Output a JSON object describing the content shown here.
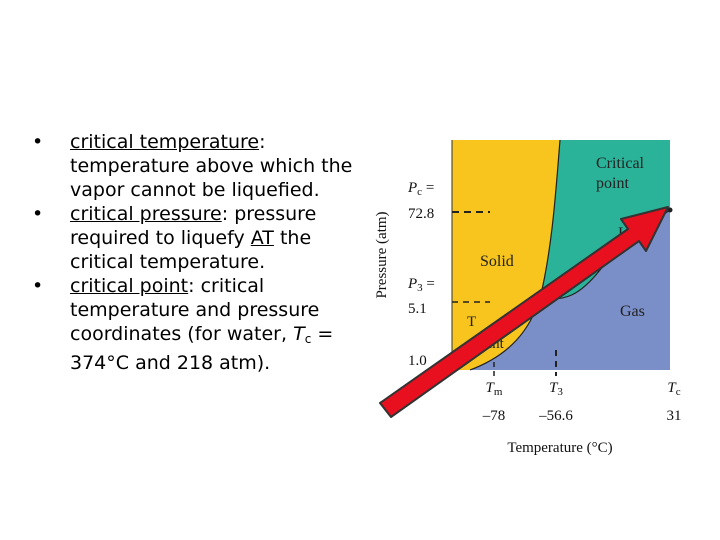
{
  "bullets": [
    {
      "term": "critical temperature",
      "rest": ": temperature above which the vapor cannot be liquefied."
    },
    {
      "term": "critical pressure",
      "rest_a": ": pressure required to liquefy ",
      "at": "AT",
      "rest_b": " the critical temperature."
    },
    {
      "term": "critical point",
      "rest_a": ": critical temperature and pressure coordinates (for water, ",
      "tc": "T",
      "tc_sub": "c",
      "rest_b": " = 374°C and 218 atm)."
    }
  ],
  "diagram": {
    "ylabel": "Pressure (atm)",
    "xlabel": "Temperature (°C)",
    "y_ticks": [
      {
        "sym": "P",
        "sub": "c",
        "eq": " =",
        "value": "72.8"
      },
      {
        "sym": "P",
        "sub": "3",
        "eq": " =",
        "value": "5.1"
      },
      {
        "value": "1.0"
      }
    ],
    "x_ticks": [
      {
        "sym": "T",
        "sub": "m",
        "value": "–78"
      },
      {
        "sym": "T",
        "sub": "3",
        "value": "–56.6"
      },
      {
        "sym": "T",
        "sub": "c",
        "value": "31"
      }
    ],
    "regions": {
      "solid": "Solid",
      "gas": "Gas",
      "liquid_partial": "Li",
      "critical_point_line1": "Critical",
      "critical_point_line2": "point",
      "triple_partial_1": "T",
      "triple_partial_2": "int"
    },
    "colors": {
      "solid": "#f7c51e",
      "liquid": "#2bb39a",
      "gas": "#7a8fc7",
      "arrow": "#e8101e",
      "arrow_outline": "#333333"
    }
  }
}
